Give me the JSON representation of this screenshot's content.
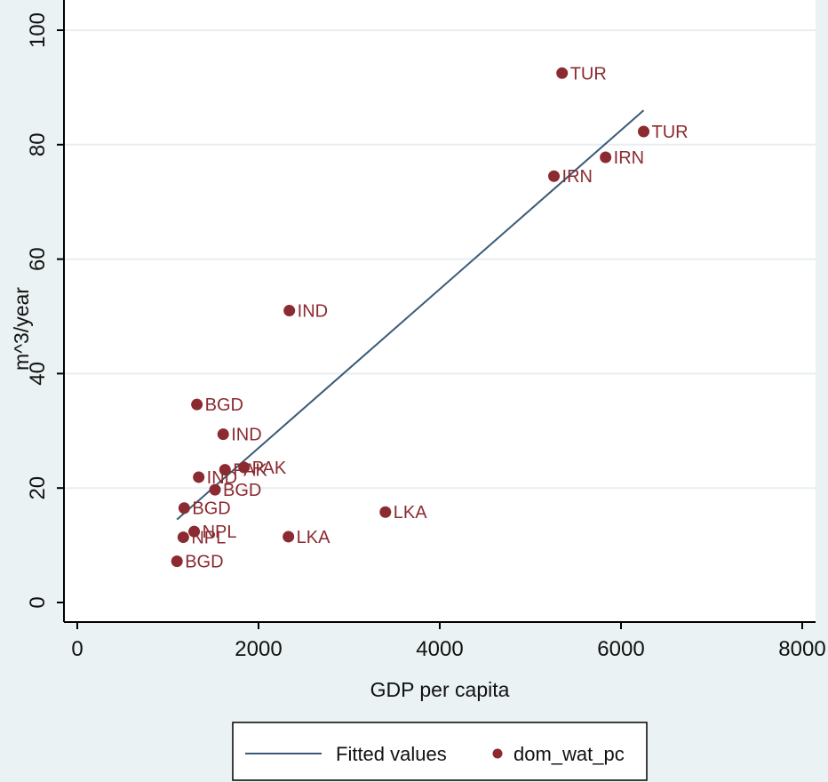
{
  "chart_data": {
    "type": "scatter",
    "xlabel": "GDP per capita",
    "ylabel": "m^3/year",
    "xlim": [
      0,
      8000
    ],
    "ylim": [
      0,
      100
    ],
    "xticks": [
      "0",
      "2000",
      "4000",
      "6000",
      "8000"
    ],
    "yticks": [
      "0",
      "20",
      "40",
      "60",
      "80",
      "100"
    ],
    "grid": true,
    "legend_position": "bottom",
    "series": [
      {
        "name": "dom_wat_pc",
        "type": "scatter",
        "color": "#8b2a30",
        "points": [
          {
            "label": "TUR",
            "x": 5350,
            "y": 92.5
          },
          {
            "label": "TUR",
            "x": 6250,
            "y": 82.3
          },
          {
            "label": "IRN",
            "x": 5830,
            "y": 77.8
          },
          {
            "label": "IRN",
            "x": 5260,
            "y": 74.5
          },
          {
            "label": "IND",
            "x": 2340,
            "y": 51.0
          },
          {
            "label": "BGD",
            "x": 1320,
            "y": 34.6
          },
          {
            "label": "IND",
            "x": 1610,
            "y": 29.4
          },
          {
            "label": "PAK",
            "x": 1840,
            "y": 23.6
          },
          {
            "label": "PAK",
            "x": 1630,
            "y": 23.2
          },
          {
            "label": "IND",
            "x": 1340,
            "y": 21.9
          },
          {
            "label": "BGD",
            "x": 1520,
            "y": 19.7
          },
          {
            "label": "BGD",
            "x": 1180,
            "y": 16.5
          },
          {
            "label": "LKA",
            "x": 3400,
            "y": 15.8
          },
          {
            "label": "NPL",
            "x": 1290,
            "y": 12.4
          },
          {
            "label": "NPL",
            "x": 1170,
            "y": 11.4
          },
          {
            "label": "LKA",
            "x": 2330,
            "y": 11.5
          },
          {
            "label": "BGD",
            "x": 1100,
            "y": 7.2
          }
        ]
      },
      {
        "name": "Fitted values",
        "type": "line",
        "color": "#3b5a78",
        "points": [
          {
            "x": 1100,
            "y": 14.5
          },
          {
            "x": 6250,
            "y": 86.0
          }
        ]
      }
    ]
  }
}
